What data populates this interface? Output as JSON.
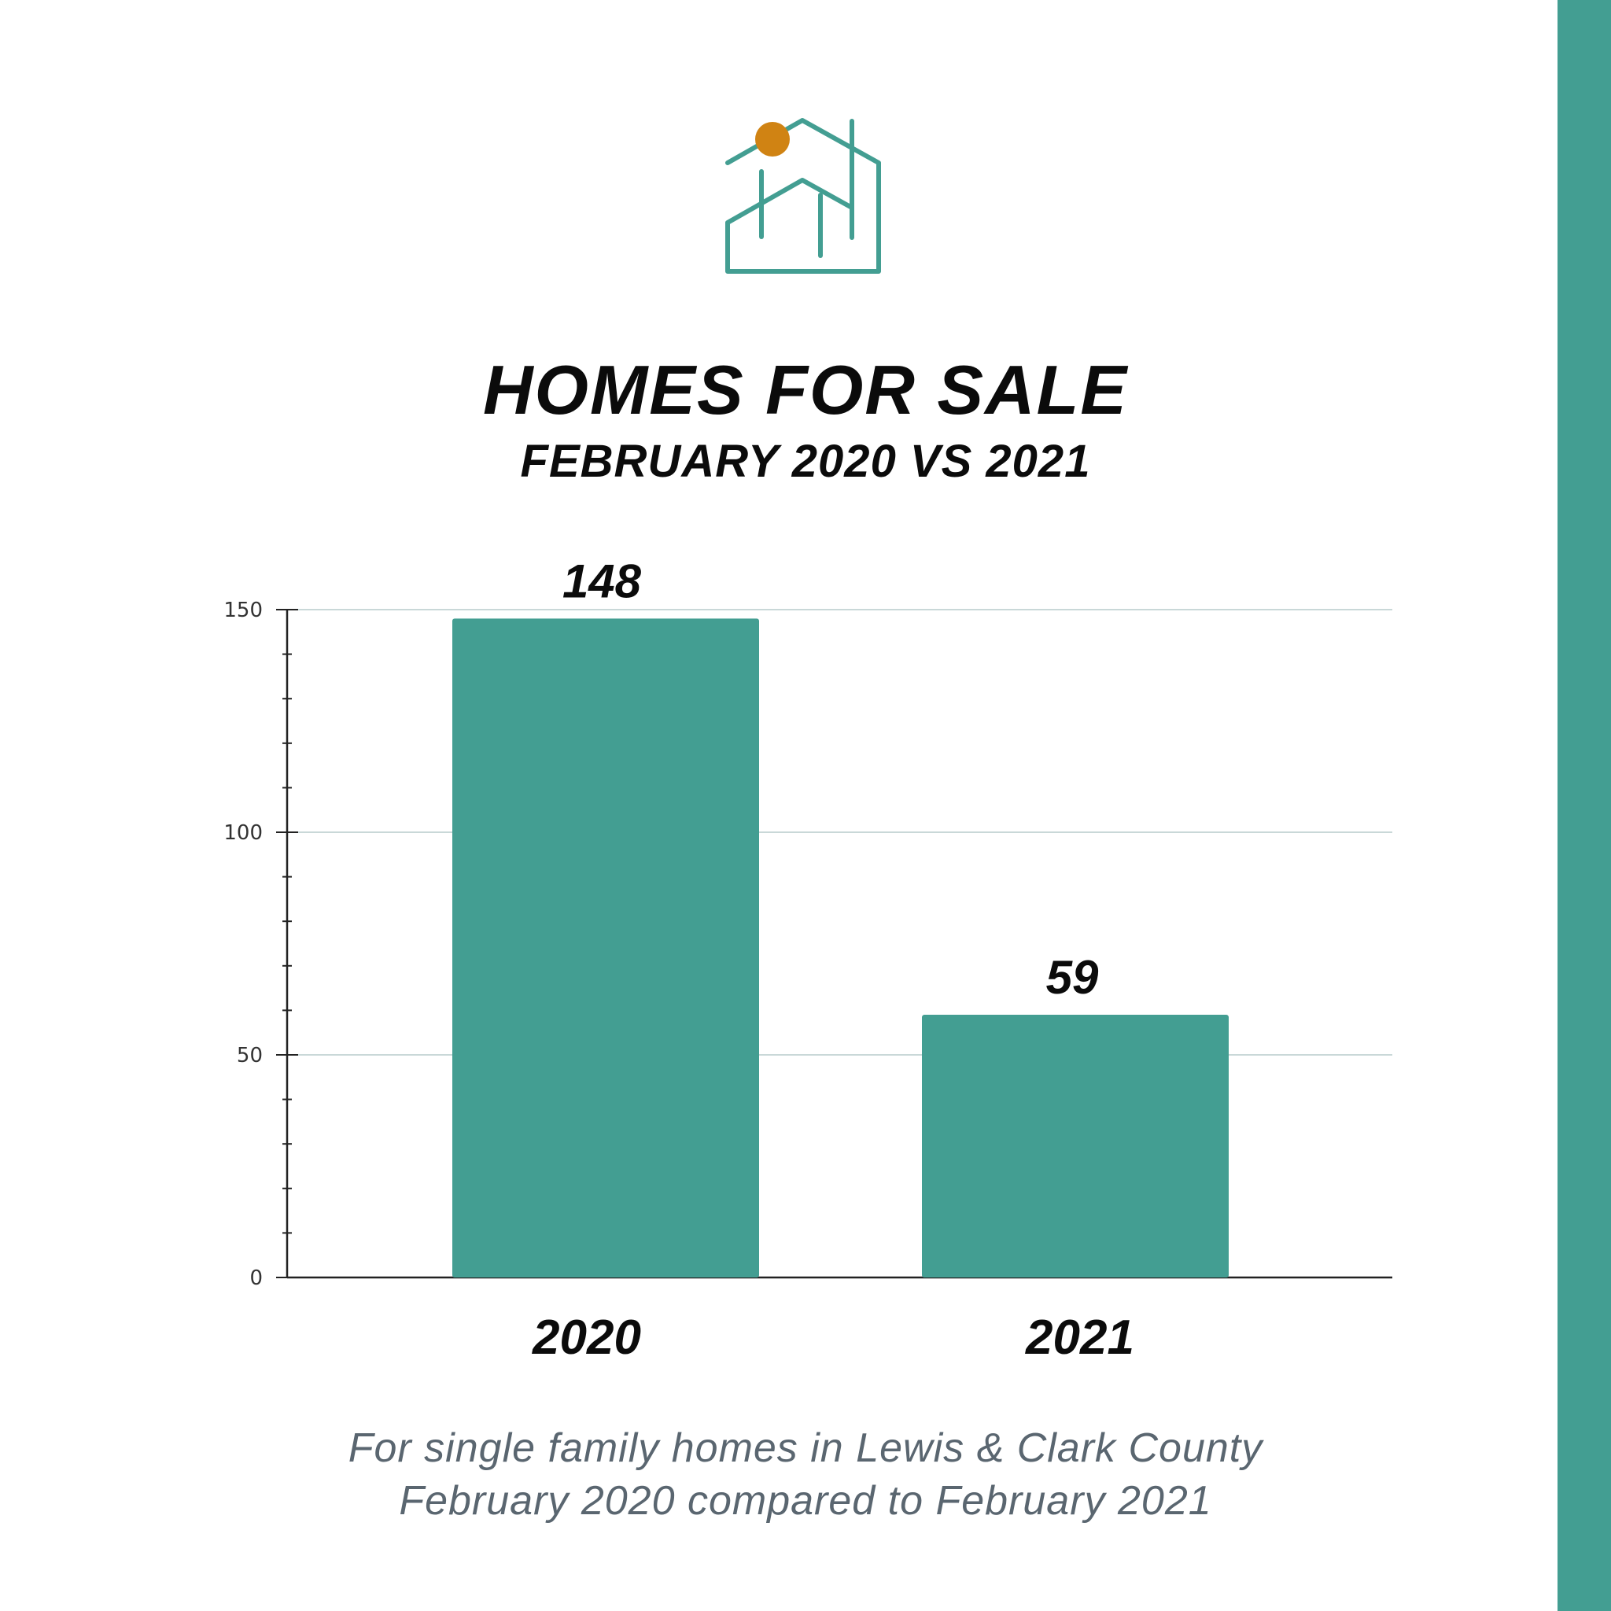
{
  "header": {
    "title": "HOMES FOR SALE",
    "subtitle": "FEBRUARY 2020 VS 2021"
  },
  "logo": {
    "icon": "house-logo-icon",
    "line_color": "#439e92",
    "dot_color": "#d08313"
  },
  "footer": {
    "line1": "For single family homes in Lewis & Clark County",
    "line2": "February 2020 compared to February 2021"
  },
  "colors": {
    "bar": "#439e92",
    "accent_side": "#439e92",
    "grid": "#c9d8d8"
  },
  "chart_data": {
    "type": "bar",
    "categories": [
      "2020",
      "2021"
    ],
    "values": [
      148,
      59
    ],
    "data_labels": [
      "148",
      "59"
    ],
    "title": "HOMES FOR SALE",
    "subtitle": "FEBRUARY 2020 VS 2021",
    "xlabel": "",
    "ylabel": "",
    "ylim": [
      0,
      150
    ],
    "yticks": [
      0,
      50,
      100,
      150
    ],
    "grid": true,
    "legend": "none"
  }
}
